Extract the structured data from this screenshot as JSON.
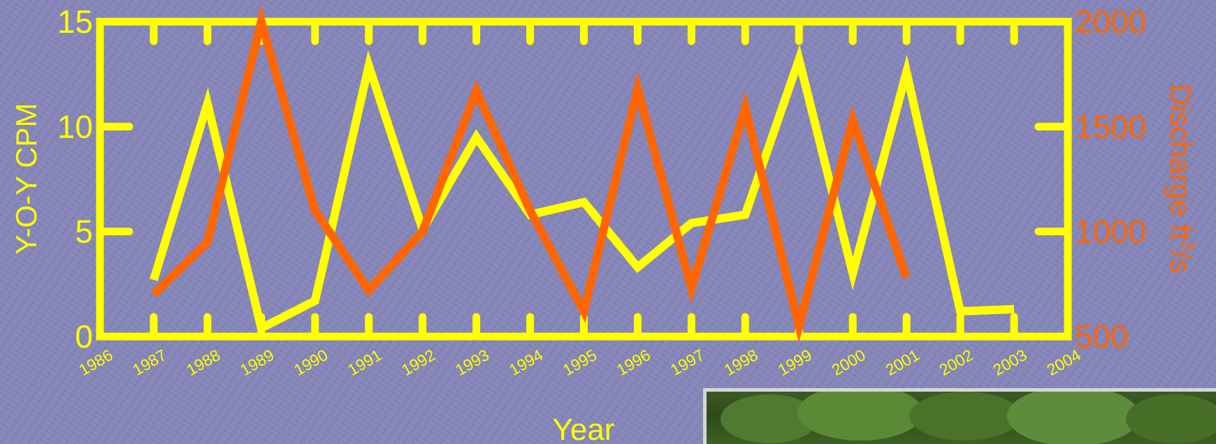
{
  "chart_data": {
    "type": "line",
    "xlabel": "Year",
    "ylabel_left": "Y-O-Y CPM",
    "ylabel_right": "Discharge ft³/s",
    "ylabel_right_base": "Discharge ft",
    "ylabel_right_sup": "3",
    "ylabel_right_tail": "/s",
    "xlim": [
      1986,
      2004
    ],
    "ylim_left": [
      0,
      15
    ],
    "ylim_right": [
      500,
      2000
    ],
    "x_ticks": [
      "1986",
      "1987",
      "1988",
      "1989",
      "1990",
      "1991",
      "1992",
      "1993",
      "1994",
      "1995",
      "1996",
      "1997",
      "1998",
      "1999",
      "2000",
      "2001",
      "2002",
      "2003",
      "2004"
    ],
    "y_left_ticks": [
      "0",
      "5",
      "10",
      "15"
    ],
    "y_right_ticks": [
      "500",
      "1000",
      "1500",
      "2000"
    ],
    "series": [
      {
        "axis": "left",
        "color": "#ffff00",
        "x": [
          1987,
          1988,
          1989,
          1990,
          1991,
          1992,
          1993,
          1994,
          1995,
          1996,
          1997,
          1998,
          1999,
          2000,
          2001,
          2002,
          2003
        ],
        "values": [
          2.7,
          11.1,
          0.4,
          1.7,
          12.9,
          5.1,
          9.5,
          5.8,
          6.4,
          3.3,
          5.4,
          5.8,
          13.2,
          3.0,
          12.6,
          1.2,
          1.3
        ]
      },
      {
        "axis": "right",
        "color": "#ff6600",
        "x": [
          1987,
          1988,
          1989,
          1990,
          1991,
          1992,
          1993,
          1994,
          1995,
          1996,
          1997,
          1998,
          1999,
          2000,
          2001
        ],
        "values": [
          700,
          950,
          2000,
          1100,
          720,
          1000,
          1670,
          1100,
          620,
          1680,
          730,
          1590,
          550,
          1530,
          780
        ]
      }
    ],
    "grid": false,
    "legend": "none"
  },
  "colors": {
    "axis": "#ffff00",
    "left_labels": "#ffff00",
    "right_labels": "#ff6600",
    "background": "#8585b8"
  }
}
